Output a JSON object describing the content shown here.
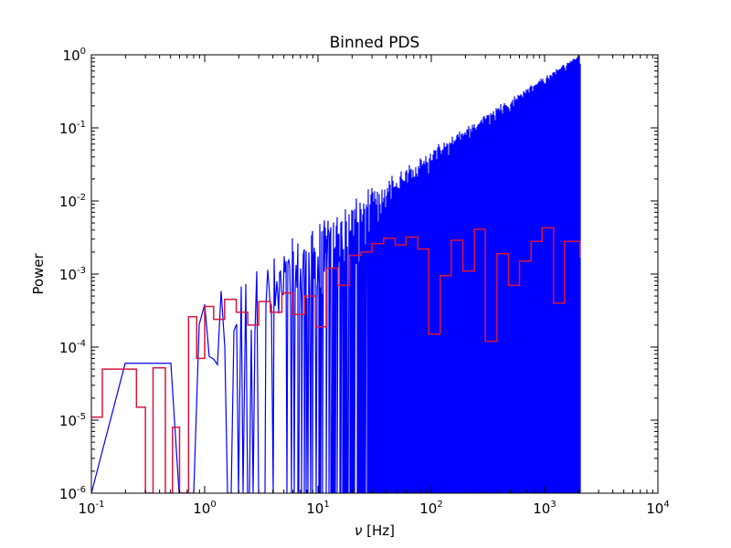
{
  "chart_data": {
    "type": "line",
    "title": "Binned PDS",
    "xlabel_symbol": "ν",
    "xlabel_unit": "[Hz]",
    "ylabel": "Power",
    "x_scale": "log",
    "y_scale": "log",
    "xlim": [
      0.1,
      10000
    ],
    "ylim": [
      1e-06,
      1
    ],
    "x_ticks": [
      {
        "base": "10",
        "exp": "-1",
        "value": 0.1
      },
      {
        "base": "10",
        "exp": "0",
        "value": 1
      },
      {
        "base": "10",
        "exp": "1",
        "value": 10
      },
      {
        "base": "10",
        "exp": "2",
        "value": 100
      },
      {
        "base": "10",
        "exp": "3",
        "value": 1000
      },
      {
        "base": "10",
        "exp": "4",
        "value": 10000
      }
    ],
    "y_ticks": [
      {
        "base": "10",
        "exp": "-6",
        "value": 1e-06
      },
      {
        "base": "10",
        "exp": "-5",
        "value": 1e-05
      },
      {
        "base": "10",
        "exp": "-4",
        "value": 0.0001
      },
      {
        "base": "10",
        "exp": "-3",
        "value": 0.001
      },
      {
        "base": "10",
        "exp": "-2",
        "value": 0.01
      },
      {
        "base": "10",
        "exp": "-1",
        "value": 0.1
      },
      {
        "base": "10",
        "exp": "0",
        "value": 1
      }
    ],
    "grid": false,
    "legend": "none",
    "series": [
      {
        "style": "steps",
        "color": "#0000ff",
        "x_range": [
          0.1,
          2048
        ],
        "upper_envelope": {
          "x": [
            0.5,
            2000
          ],
          "y": [
            0.0003,
            1.0
          ]
        },
        "note_points": "dense noise spectrum, power dips to the bottom edge frequently"
      },
      {
        "style": "steps",
        "color": "#dc143c",
        "x": [
          0.1,
          0.125,
          0.25,
          0.3,
          0.35,
          0.45,
          0.52,
          0.6,
          0.72,
          0.85,
          1.0,
          1.2,
          1.5,
          1.9,
          2.4,
          3.0,
          3.8,
          4.8,
          6.0,
          7.6,
          9.5,
          12,
          15,
          19,
          24,
          30,
          38,
          48,
          60,
          76,
          95,
          120,
          150,
          190,
          240,
          300,
          380,
          480,
          600,
          760,
          950,
          1200,
          1500,
          2048
        ],
        "y": [
          1.1e-05,
          5e-05,
          1.5e-05,
          1e-06,
          5.2e-05,
          1e-06,
          8e-06,
          1e-06,
          0.00026,
          7e-05,
          0.00036,
          0.00024,
          0.00045,
          0.0003,
          0.0002,
          0.00042,
          0.0003,
          0.00055,
          0.00028,
          0.0005,
          0.00019,
          0.0012,
          0.0007,
          0.0018,
          0.002,
          0.0026,
          0.0031,
          0.0025,
          0.0032,
          0.0022,
          0.00015,
          0.00095,
          0.0029,
          0.0011,
          0.0041,
          0.00012,
          0.0019,
          0.0007,
          0.0015,
          0.0028,
          0.0043,
          0.0004,
          0.0028,
          0.0017
        ]
      }
    ]
  }
}
